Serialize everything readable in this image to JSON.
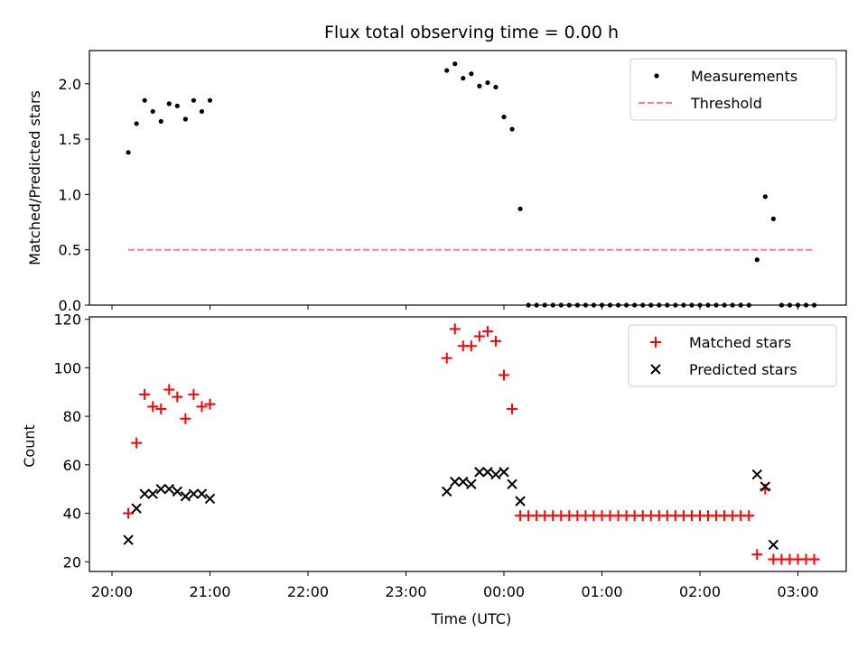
{
  "chart_data": {
    "title": "Flux total observing time = 0.00 h",
    "xlabel": "Time (UTC)",
    "x_ticks": [
      "20:00",
      "21:00",
      "22:00",
      "23:00",
      "00:00",
      "01:00",
      "02:00",
      "03:00"
    ],
    "panels": [
      {
        "type": "scatter",
        "ylabel": "Matched/Predicted stars",
        "ylim": [
          0,
          2.3
        ],
        "y_ticks": [
          "0.0",
          "0.5",
          "1.0",
          "1.5",
          "2.0"
        ],
        "y_tick_values": [
          0,
          0.5,
          1.0,
          1.5,
          2.0
        ],
        "legend_position": "top-right",
        "series": [
          {
            "name": "Measurements",
            "marker": "dot",
            "color": "#000000",
            "points": [
              [
                "20:10",
                1.38
              ],
              [
                "20:15",
                1.64
              ],
              [
                "20:20",
                1.85
              ],
              [
                "20:25",
                1.75
              ],
              [
                "20:30",
                1.66
              ],
              [
                "20:35",
                1.82
              ],
              [
                "20:40",
                1.8
              ],
              [
                "20:45",
                1.68
              ],
              [
                "20:50",
                1.85
              ],
              [
                "20:55",
                1.75
              ],
              [
                "21:00",
                1.85
              ],
              [
                "23:25",
                2.12
              ],
              [
                "23:30",
                2.18
              ],
              [
                "23:35",
                2.05
              ],
              [
                "23:40",
                2.09
              ],
              [
                "23:45",
                1.98
              ],
              [
                "23:50",
                2.01
              ],
              [
                "23:55",
                1.97
              ],
              [
                "00:00",
                1.7
              ],
              [
                "00:05",
                1.59
              ],
              [
                "00:10",
                0.87
              ],
              [
                "00:15",
                0
              ],
              [
                "00:20",
                0
              ],
              [
                "00:25",
                0
              ],
              [
                "00:30",
                0
              ],
              [
                "00:35",
                0
              ],
              [
                "00:40",
                0
              ],
              [
                "00:45",
                0
              ],
              [
                "00:50",
                0
              ],
              [
                "00:55",
                0
              ],
              [
                "01:00",
                0
              ],
              [
                "01:05",
                0
              ],
              [
                "01:10",
                0
              ],
              [
                "01:15",
                0
              ],
              [
                "01:20",
                0
              ],
              [
                "01:25",
                0
              ],
              [
                "01:30",
                0
              ],
              [
                "01:35",
                0
              ],
              [
                "01:40",
                0
              ],
              [
                "01:45",
                0
              ],
              [
                "01:50",
                0
              ],
              [
                "01:55",
                0
              ],
              [
                "02:00",
                0
              ],
              [
                "02:05",
                0
              ],
              [
                "02:10",
                0
              ],
              [
                "02:15",
                0
              ],
              [
                "02:20",
                0
              ],
              [
                "02:25",
                0
              ],
              [
                "02:30",
                0
              ],
              [
                "02:35",
                0.41
              ],
              [
                "02:40",
                0.98
              ],
              [
                "02:45",
                0.78
              ],
              [
                "02:50",
                0
              ],
              [
                "02:55",
                0
              ],
              [
                "03:00",
                0
              ],
              [
                "03:05",
                0
              ],
              [
                "03:10",
                0
              ]
            ]
          },
          {
            "name": "Threshold",
            "type": "line",
            "style": "dashed",
            "color": "#ff8080",
            "points": [
              [
                "20:10",
                0.5
              ],
              [
                "03:10",
                0.5
              ]
            ]
          }
        ]
      },
      {
        "type": "scatter",
        "ylabel": "Count",
        "ylim": [
          16,
          121
        ],
        "y_ticks": [
          "20",
          "40",
          "60",
          "80",
          "100",
          "120"
        ],
        "y_tick_values": [
          20,
          40,
          60,
          80,
          100,
          120
        ],
        "legend_position": "top-right",
        "series": [
          {
            "name": "Matched stars",
            "marker": "plus",
            "color": "#ff0000",
            "points": [
              [
                "20:10",
                40
              ],
              [
                "20:15",
                69
              ],
              [
                "20:20",
                89
              ],
              [
                "20:25",
                84
              ],
              [
                "20:30",
                83
              ],
              [
                "20:35",
                91
              ],
              [
                "20:40",
                88
              ],
              [
                "20:45",
                79
              ],
              [
                "20:50",
                89
              ],
              [
                "20:55",
                84
              ],
              [
                "21:00",
                85
              ],
              [
                "23:25",
                104
              ],
              [
                "23:30",
                116
              ],
              [
                "23:35",
                109
              ],
              [
                "23:40",
                109
              ],
              [
                "23:45",
                113
              ],
              [
                "23:50",
                115
              ],
              [
                "23:55",
                111
              ],
              [
                "00:00",
                97
              ],
              [
                "00:05",
                83
              ],
              [
                "00:10",
                39
              ],
              [
                "00:15",
                39
              ],
              [
                "00:20",
                39
              ],
              [
                "00:25",
                39
              ],
              [
                "00:30",
                39
              ],
              [
                "00:35",
                39
              ],
              [
                "00:40",
                39
              ],
              [
                "00:45",
                39
              ],
              [
                "00:50",
                39
              ],
              [
                "00:55",
                39
              ],
              [
                "01:00",
                39
              ],
              [
                "01:05",
                39
              ],
              [
                "01:10",
                39
              ],
              [
                "01:15",
                39
              ],
              [
                "01:20",
                39
              ],
              [
                "01:25",
                39
              ],
              [
                "01:30",
                39
              ],
              [
                "01:35",
                39
              ],
              [
                "01:40",
                39
              ],
              [
                "01:45",
                39
              ],
              [
                "01:50",
                39
              ],
              [
                "01:55",
                39
              ],
              [
                "02:00",
                39
              ],
              [
                "02:05",
                39
              ],
              [
                "02:10",
                39
              ],
              [
                "02:15",
                39
              ],
              [
                "02:20",
                39
              ],
              [
                "02:25",
                39
              ],
              [
                "02:30",
                39
              ],
              [
                "02:35",
                23
              ],
              [
                "02:40",
                50
              ],
              [
                "02:45",
                21
              ],
              [
                "02:50",
                21
              ],
              [
                "02:55",
                21
              ],
              [
                "03:00",
                21
              ],
              [
                "03:05",
                21
              ],
              [
                "03:10",
                21
              ]
            ]
          },
          {
            "name": "Predicted stars",
            "marker": "x",
            "color": "#000000",
            "points": [
              [
                "20:10",
                29
              ],
              [
                "20:15",
                42
              ],
              [
                "20:20",
                48
              ],
              [
                "20:25",
                48
              ],
              [
                "20:30",
                50
              ],
              [
                "20:35",
                50
              ],
              [
                "20:40",
                49
              ],
              [
                "20:45",
                47
              ],
              [
                "20:50",
                48
              ],
              [
                "20:55",
                48
              ],
              [
                "21:00",
                46
              ],
              [
                "23:25",
                49
              ],
              [
                "23:30",
                53
              ],
              [
                "23:35",
                53
              ],
              [
                "23:40",
                52
              ],
              [
                "23:45",
                57
              ],
              [
                "23:50",
                57
              ],
              [
                "23:55",
                56
              ],
              [
                "00:00",
                57
              ],
              [
                "00:05",
                52
              ],
              [
                "00:10",
                45
              ],
              [
                "02:35",
                56
              ],
              [
                "02:40",
                51
              ],
              [
                "02:45",
                27
              ]
            ]
          }
        ]
      }
    ]
  }
}
